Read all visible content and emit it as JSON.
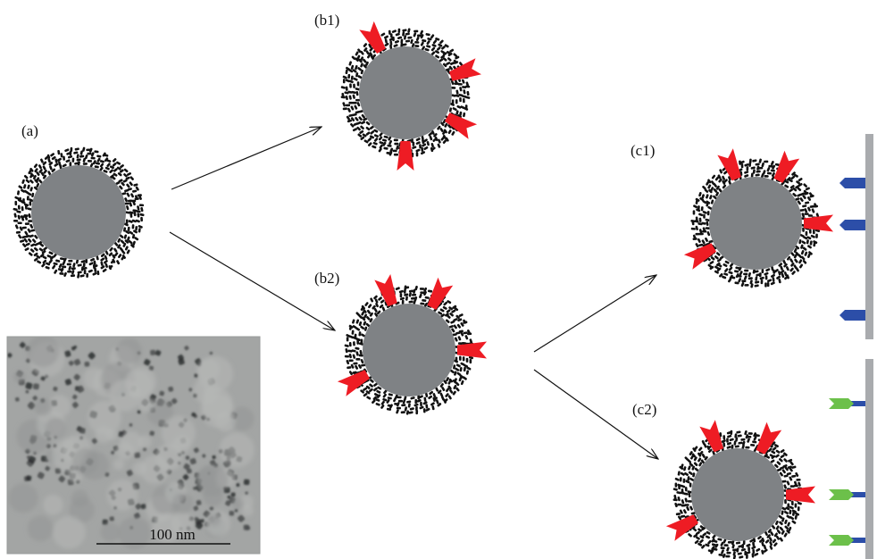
{
  "labels": {
    "a": "(a)",
    "b1": "(b1)",
    "b2": "(b2)",
    "c1": "(c1)",
    "c2": "(c2)"
  },
  "micrograph": {
    "scale_bar_text": "100 nm"
  },
  "colors": {
    "core": "#7f8285",
    "coating": "#111111",
    "ligand": "#ee1c24",
    "receptor": "#2c4ea8",
    "blocker": "#6cc04a",
    "surface": "#a9abae",
    "arrow": "#111111"
  }
}
